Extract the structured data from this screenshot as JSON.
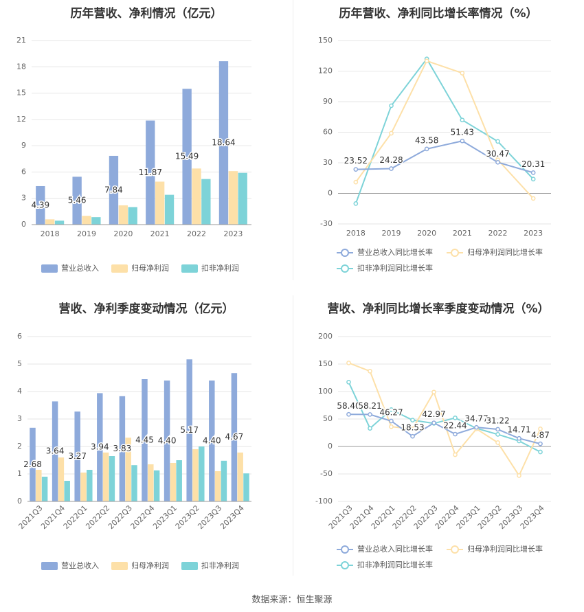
{
  "footer": {
    "source": "数据来源：恒生聚源"
  },
  "chart_data": [
    {
      "type": "bar",
      "title": "历年营收、净利情况（亿元）",
      "categories": [
        "2018",
        "2019",
        "2020",
        "2021",
        "2022",
        "2023"
      ],
      "ylim": [
        0,
        21
      ],
      "yticks": [
        0,
        3,
        6,
        9,
        12,
        15,
        18,
        21
      ],
      "series": [
        {
          "name": "营业总收入",
          "color": "#8eaadb",
          "values": [
            4.39,
            5.46,
            7.84,
            11.87,
            15.49,
            18.64
          ],
          "labels": [
            "4.39",
            "5.46",
            "7.84",
            "11.87",
            "15.49",
            "18.64"
          ]
        },
        {
          "name": "归母净利润",
          "color": "#fde0a8",
          "values": [
            0.6,
            1.0,
            2.2,
            4.9,
            6.4,
            6.1
          ]
        },
        {
          "name": "扣非净利润",
          "color": "#7dd3d8",
          "values": [
            0.45,
            0.85,
            2.0,
            3.4,
            5.2,
            5.9
          ]
        }
      ],
      "legend": "bottom"
    },
    {
      "type": "line",
      "title": "历年营收、净利同比增长率情况（%）",
      "categories": [
        "2018",
        "2019",
        "2020",
        "2021",
        "2022",
        "2023"
      ],
      "ylim": [
        -30,
        150
      ],
      "yticks": [
        -30,
        0,
        30,
        60,
        90,
        120,
        150
      ],
      "series": [
        {
          "name": "营业总收入同比增长率",
          "color": "#8eaadb",
          "values": [
            23.52,
            24.28,
            43.58,
            51.43,
            30.47,
            20.31
          ],
          "labels": [
            "23.52",
            "24.28",
            "43.58",
            "51.43",
            "30.47",
            "20.31"
          ]
        },
        {
          "name": "归母净利润同比增长率",
          "color": "#fde0a8",
          "values": [
            11,
            59,
            130,
            118,
            33,
            -5
          ]
        },
        {
          "name": "扣非净利润同比增长率",
          "color": "#7dd3d8",
          "values": [
            -10,
            86,
            132,
            72,
            51,
            14
          ]
        }
      ],
      "legend": "bottom"
    },
    {
      "type": "bar",
      "title": "营收、净利季度变动情况（亿元）",
      "categories": [
        "2021Q3",
        "2021Q4",
        "2022Q1",
        "2022Q2",
        "2022Q3",
        "2022Q4",
        "2023Q1",
        "2023Q2",
        "2023Q3",
        "2023Q4"
      ],
      "ylim": [
        0,
        6
      ],
      "yticks": [
        0,
        1,
        2,
        3,
        4,
        5,
        6
      ],
      "series": [
        {
          "name": "营业总收入",
          "color": "#8eaadb",
          "values": [
            2.68,
            3.64,
            3.27,
            3.94,
            3.83,
            4.45,
            4.4,
            5.17,
            4.4,
            4.67
          ],
          "labels": [
            "2.68",
            "3.64",
            "3.27",
            "3.94",
            "3.83",
            "4.45",
            "4.40",
            "5.17",
            "4.40",
            "4.67"
          ]
        },
        {
          "name": "归母净利润",
          "color": "#fde0a8",
          "values": [
            1.15,
            1.6,
            1.05,
            1.78,
            2.32,
            1.35,
            1.4,
            1.9,
            1.1,
            1.78
          ]
        },
        {
          "name": "扣非净利润",
          "color": "#7dd3d8",
          "values": [
            0.9,
            0.75,
            1.15,
            1.65,
            1.32,
            1.13,
            1.5,
            2.0,
            1.48,
            1.02
          ]
        }
      ],
      "legend": "bottom"
    },
    {
      "type": "line",
      "title": "营收、净利同比增长率季度变动情况（%）",
      "categories": [
        "2021Q3",
        "2021Q4",
        "2022Q1",
        "2022Q2",
        "2022Q3",
        "2022Q4",
        "2023Q1",
        "2023Q2",
        "2023Q3",
        "2023Q4"
      ],
      "ylim": [
        -100,
        200
      ],
      "yticks": [
        -100,
        -50,
        0,
        50,
        100,
        150,
        200
      ],
      "series": [
        {
          "name": "营业总收入同比增长率",
          "color": "#8eaadb",
          "values": [
            58.4,
            58.21,
            46.27,
            18.53,
            42.97,
            22.44,
            34.77,
            31.22,
            14.71,
            4.87
          ],
          "labels": [
            "58.40",
            "58.21",
            "46.27",
            "18.53",
            "42.97",
            "22.44",
            "34.77",
            "31.22",
            "14.71",
            "4.87"
          ]
        },
        {
          "name": "归母净利润同比增长率",
          "color": "#fde0a8",
          "values": [
            152,
            137,
            36,
            32,
            99,
            -15,
            32,
            7,
            -53,
            32
          ]
        },
        {
          "name": "扣非净利润同比增长率",
          "color": "#7dd3d8",
          "values": [
            117,
            33,
            67,
            48,
            42,
            52,
            33,
            22,
            10,
            -10
          ]
        }
      ],
      "legend": "bottom"
    }
  ]
}
